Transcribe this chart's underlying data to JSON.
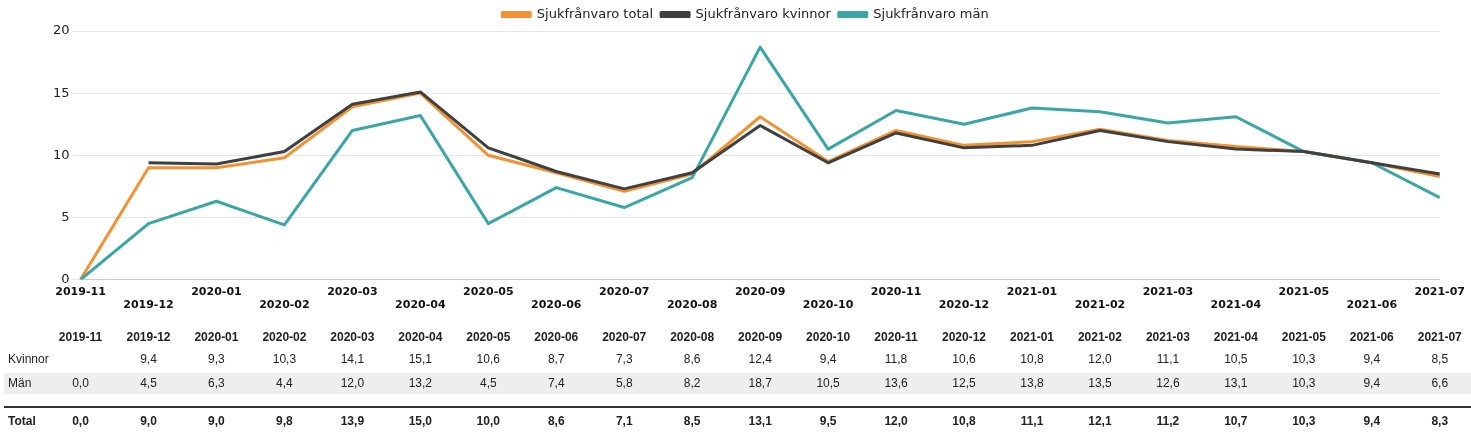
{
  "chart_data": {
    "type": "line",
    "categories": [
      "2019-11",
      "2019-12",
      "2020-01",
      "2020-02",
      "2020-03",
      "2020-04",
      "2020-05",
      "2020-06",
      "2020-07",
      "2020-08",
      "2020-09",
      "2020-10",
      "2020-11",
      "2020-12",
      "2021-01",
      "2021-02",
      "2021-03",
      "2021-04",
      "2021-05",
      "2021-06",
      "2021-07"
    ],
    "series": [
      {
        "name": "Sjukfrånvaro kvinnor",
        "color": "#404040",
        "values": [
          null,
          9.4,
          9.3,
          10.3,
          14.1,
          15.1,
          10.6,
          8.7,
          7.3,
          8.6,
          12.4,
          9.4,
          11.8,
          10.6,
          10.8,
          12.0,
          11.1,
          10.5,
          10.3,
          9.4,
          8.5
        ],
        "value_labels": [
          null,
          "9,4",
          "9,3",
          "10,3",
          "14,1",
          "15,1",
          "10,6",
          "8,7",
          "7,3",
          "8,6",
          "12,4",
          "9,4",
          "11,8",
          "10,6",
          "10,8",
          "12,0",
          "11,1",
          "10,5",
          "10,3",
          "9,4",
          "8,5"
        ]
      },
      {
        "name": "Sjukfrånvaro män",
        "color": "#3aa6a8",
        "values": [
          0.0,
          4.5,
          6.3,
          4.4,
          12.0,
          13.2,
          4.5,
          7.4,
          5.8,
          8.2,
          18.7,
          10.5,
          13.6,
          12.5,
          13.8,
          13.5,
          12.6,
          13.1,
          10.3,
          9.4,
          6.6
        ],
        "value_labels": [
          "0,0",
          "4,5",
          "6,3",
          "4,4",
          "12,0",
          "13,2",
          "4,5",
          "7,4",
          "5,8",
          "8,2",
          "18,7",
          "10,5",
          "13,6",
          "12,5",
          "13,8",
          "13,5",
          "12,6",
          "13,1",
          "10,3",
          "9,4",
          "6,6"
        ]
      },
      {
        "name": "Sjukfrånvaro total",
        "color": "#f39233",
        "values": [
          0.0,
          9.0,
          9.0,
          9.8,
          13.9,
          15.0,
          10.0,
          8.6,
          7.1,
          8.5,
          13.1,
          9.5,
          12.0,
          10.8,
          11.1,
          12.1,
          11.2,
          10.7,
          10.3,
          9.4,
          8.3
        ],
        "value_labels": [
          "0,0",
          "9,0",
          "9,0",
          "9,8",
          "13,9",
          "15,0",
          "10,0",
          "8,6",
          "7,1",
          "8,5",
          "13,1",
          "9,5",
          "12,0",
          "10,8",
          "11,1",
          "12,1",
          "11,2",
          "10,7",
          "10,3",
          "9,4",
          "8,3"
        ]
      }
    ],
    "annotations": [
      "Kvinnor",
      "Män",
      "Total"
    ],
    "ylim": [
      0,
      20
    ],
    "yticks": [
      0,
      5,
      10,
      15,
      20
    ],
    "grid": "y",
    "legend": "top",
    "marker": "none",
    "line_style": "solid"
  }
}
